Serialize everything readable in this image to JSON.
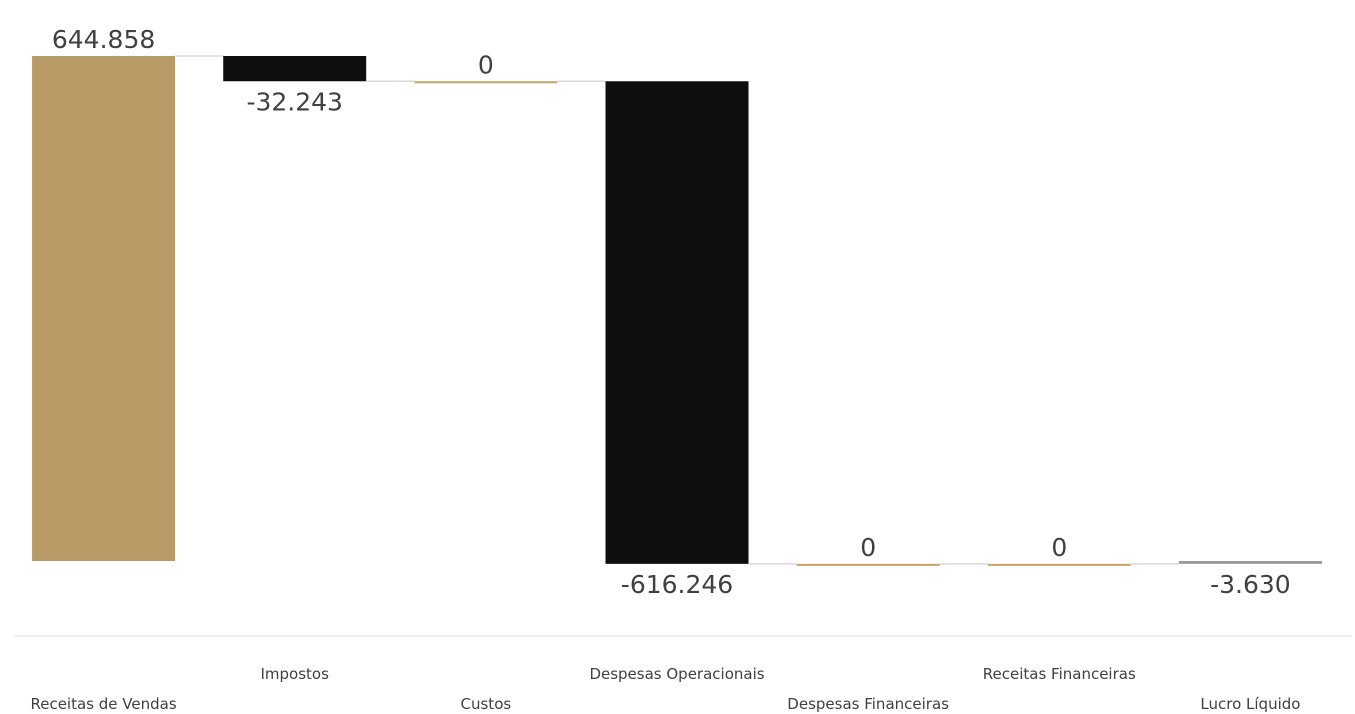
{
  "chart_data": {
    "type": "waterfall",
    "title": "",
    "xlabel": "",
    "ylabel": "",
    "categories": [
      "Receitas de Vendas",
      "Impostos",
      "Custos",
      "Despesas Operacionais",
      "Despesas Financeiras",
      "Receitas Financeiras",
      "Lucro Líquido"
    ],
    "values": [
      644858,
      -32243,
      0,
      -616246,
      0,
      0,
      -3630
    ],
    "value_labels": [
      "644.858",
      "-32.243",
      "0",
      "-616.246",
      "0",
      "0",
      "-3.630"
    ],
    "bar_kinds": [
      "total",
      "delta",
      "delta",
      "delta",
      "delta",
      "delta",
      "total"
    ],
    "colors": {
      "revenue": "#b89a66",
      "negative": "#0e0e0e",
      "zero": "#c8a16a",
      "total_small": "#9a9a9a",
      "connector": "#d9d9d9",
      "axis": "#d9d9d9"
    },
    "grid": false,
    "legend": "none"
  }
}
